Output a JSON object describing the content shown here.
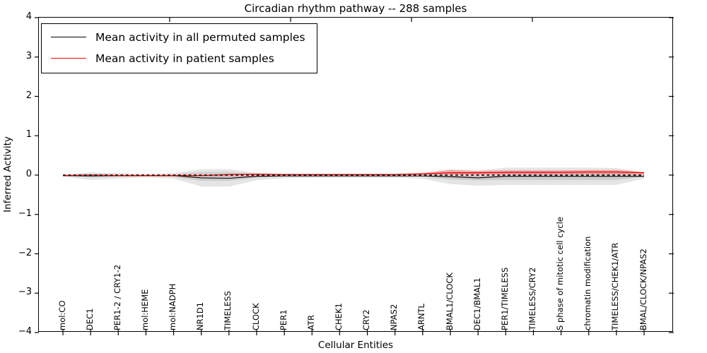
{
  "title": "Circadian rhythm pathway -- 288 samples",
  "xlabel": "Cellular Entities",
  "ylabel": "Inferred Activity",
  "y_tick_labels": [
    "4",
    "3",
    "2",
    "1",
    "0",
    "−1",
    "−2",
    "−3",
    "−4"
  ],
  "legend": [
    {
      "label": "Mean activity in all permuted samples",
      "color": "#000000"
    },
    {
      "label": "Mean activity in patient samples",
      "color": "#ff0000"
    }
  ],
  "colors": {
    "permuted_line": "#000000",
    "patient_line": "#ff0000",
    "permuted_band": "rgba(0,0,0,0.10)",
    "patient_band": "rgba(255,0,0,0.25)",
    "zero_line_dash": "#000000",
    "zero_line_gap": "#ffffff"
  },
  "chart_data": {
    "type": "line",
    "title": "Circadian rhythm pathway -- 288 samples",
    "xlabel": "Cellular Entities",
    "ylabel": "Inferred Activity",
    "ylim": [
      -4,
      4
    ],
    "yticks": [
      4,
      3,
      2,
      1,
      0,
      -1,
      -2,
      -3,
      -4
    ],
    "grid": false,
    "legend_position": "upper left",
    "zero_reference_line": "dashed",
    "categories": [
      "mol:CO",
      "DEC1",
      "PER1-2 / CRY1-2",
      "mol:HEME",
      "mol:NADPH",
      "NR1D1",
      "TIMELESS",
      "CLOCK",
      "PER1",
      "ATR",
      "CHEK1",
      "CRY2",
      "NPAS2",
      "ARNTL",
      "BMAL1/CLOCK",
      "DEC1/BMAL1",
      "PER1/TIMELESS",
      "TIMELESS/CRY2",
      "S phase of mitotic cell cycle",
      "chromatin modification",
      "TIMELESS/CHEK1/ATR",
      "BMAL/CLOCK/NPAS2"
    ],
    "series": [
      {
        "name": "Mean activity in all permuted samples",
        "color": "#000000",
        "values": [
          -0.01,
          -0.02,
          -0.01,
          -0.01,
          -0.01,
          -0.07,
          -0.08,
          -0.03,
          -0.02,
          -0.02,
          -0.02,
          -0.02,
          -0.02,
          -0.02,
          -0.04,
          -0.07,
          -0.03,
          -0.03,
          -0.03,
          -0.03,
          -0.03,
          -0.03
        ]
      },
      {
        "name": "Mean activity in patient samples",
        "color": "#ff0000",
        "values": [
          -0.01,
          0.0,
          -0.01,
          -0.01,
          -0.01,
          -0.01,
          0.01,
          0.02,
          0.01,
          0.01,
          0.01,
          0.01,
          0.01,
          0.03,
          0.06,
          0.06,
          0.07,
          0.07,
          0.07,
          0.08,
          0.08,
          0.06
        ]
      }
    ],
    "permuted_band": {
      "upper": [
        0.01,
        0.07,
        0.05,
        0.03,
        0.05,
        0.15,
        0.15,
        0.06,
        0.04,
        0.04,
        0.04,
        0.04,
        0.04,
        0.06,
        0.15,
        0.11,
        0.19,
        0.19,
        0.19,
        0.19,
        0.18,
        0.06
      ],
      "lower": [
        -0.04,
        -0.12,
        -0.09,
        -0.06,
        -0.09,
        -0.29,
        -0.29,
        -0.13,
        -0.08,
        -0.07,
        -0.07,
        -0.07,
        -0.07,
        -0.09,
        -0.23,
        -0.27,
        -0.25,
        -0.25,
        -0.25,
        -0.25,
        -0.25,
        -0.09
      ]
    },
    "patient_band": {
      "upper": [
        0.0,
        0.02,
        0.0,
        0.0,
        0.0,
        0.0,
        0.03,
        0.04,
        0.03,
        0.03,
        0.03,
        0.03,
        0.03,
        0.05,
        0.13,
        0.11,
        0.12,
        0.12,
        0.12,
        0.13,
        0.13,
        0.08
      ],
      "lower": [
        -0.03,
        -0.03,
        -0.03,
        -0.03,
        -0.03,
        -0.03,
        -0.03,
        -0.03,
        -0.03,
        -0.03,
        -0.03,
        -0.03,
        -0.03,
        -0.03,
        -0.03,
        -0.03,
        -0.03,
        -0.03,
        -0.03,
        -0.03,
        -0.03,
        -0.03
      ]
    }
  }
}
